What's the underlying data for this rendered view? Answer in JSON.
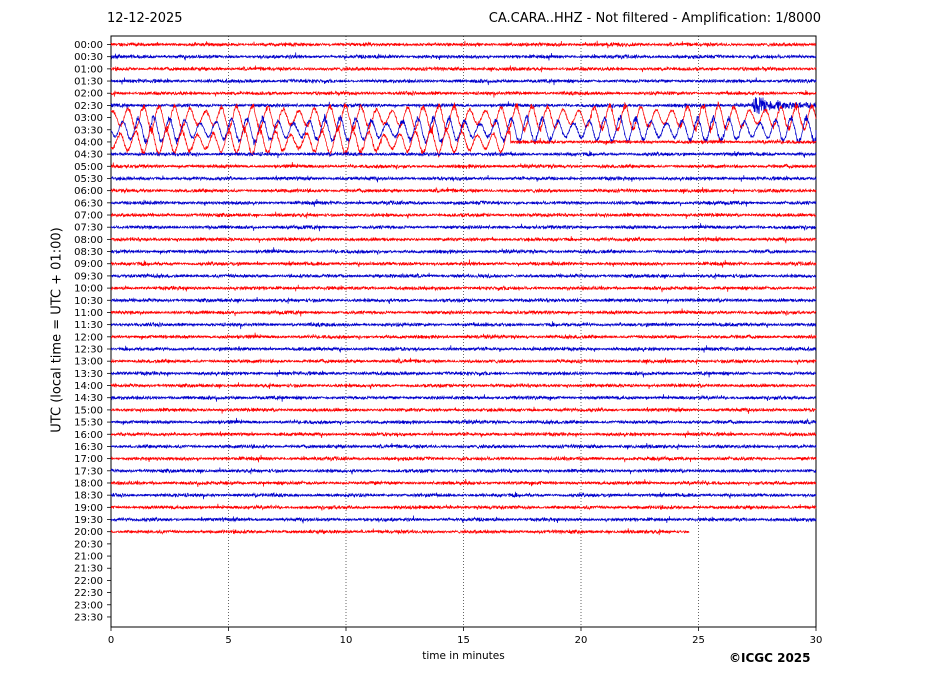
{
  "header": {
    "date": "12-12-2025",
    "title": "CA.CARA..HHZ - Not filtered - Amplification: 1/8000"
  },
  "copyright": "©ICGC 2025",
  "colors": {
    "even_rows": "#ff0000",
    "odd_rows": "#0000cc",
    "axes": "#000000",
    "gridlines": "#000000"
  },
  "chart_data": {
    "type": "line",
    "xlabel": "time in minutes",
    "ylabel": "UTC (local time = UTC + 01:00)",
    "xlim": [
      0,
      30
    ],
    "x_ticks": [
      "0",
      "5",
      "10",
      "15",
      "20",
      "25",
      "30"
    ],
    "x_tick_values": [
      0,
      5,
      10,
      15,
      20,
      25,
      30
    ],
    "vertical_gridlines_at": [
      5,
      10,
      15,
      20,
      25
    ],
    "grid_style": "dotted",
    "row_labels": [
      "00:00",
      "00:30",
      "01:00",
      "01:30",
      "02:00",
      "02:30",
      "03:00",
      "03:30",
      "04:00",
      "04:30",
      "05:00",
      "05:30",
      "06:00",
      "06:30",
      "07:00",
      "07:30",
      "08:00",
      "08:30",
      "09:00",
      "09:30",
      "10:00",
      "10:30",
      "11:00",
      "11:30",
      "12:00",
      "12:30",
      "13:00",
      "13:30",
      "14:00",
      "14:30",
      "15:00",
      "15:30",
      "16:00",
      "16:30",
      "17:00",
      "17:30",
      "18:00",
      "18:30",
      "19:00",
      "19:30",
      "20:00",
      "20:30",
      "21:00",
      "21:30",
      "22:00",
      "22:30",
      "23:00",
      "23:30"
    ],
    "traces_recorded_rows": 41,
    "last_trace_end_minutes": 24.6,
    "events": [
      {
        "row": "02:30",
        "start_minutes": 27.3,
        "end_minutes": 30,
        "kind": "onset burst"
      },
      {
        "row": "03:00",
        "start_minutes": 0,
        "end_minutes": 30,
        "kind": "large oscillation"
      },
      {
        "row": "03:30",
        "start_minutes": 0,
        "end_minutes": 30,
        "kind": "large oscillation"
      },
      {
        "row": "04:00",
        "start_minutes": 0,
        "end_minutes": 17,
        "kind": "large oscillation"
      }
    ]
  }
}
